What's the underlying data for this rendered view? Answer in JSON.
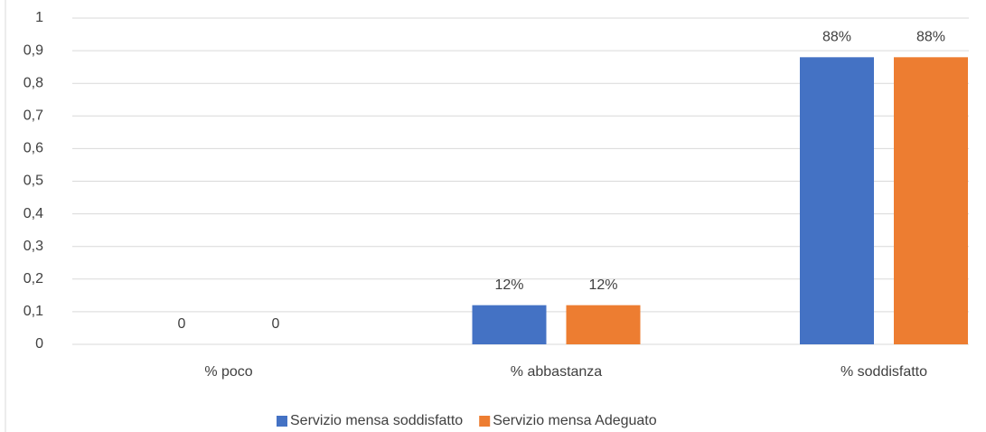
{
  "chart_data": {
    "type": "bar",
    "categories": [
      "% poco",
      "% abbastanza",
      "% soddisfatto"
    ],
    "series": [
      {
        "name": "Servizio mensa soddisfatto",
        "color": "#4472c4",
        "values": [
          0,
          0.12,
          0.88
        ],
        "value_labels": [
          "0",
          "12%",
          "88%"
        ]
      },
      {
        "name": "Servizio mensa Adeguato",
        "color": "#ed7d31",
        "values": [
          0,
          0.12,
          0.88
        ],
        "value_labels": [
          "0",
          "12%",
          "88%"
        ]
      }
    ],
    "ylim": [
      0,
      1
    ],
    "yticks": [
      0,
      {
        "value": 0.1,
        "label": "0,1"
      },
      {
        "value": 0.2,
        "label": "0,2"
      },
      {
        "value": 0.3,
        "label": "0,3"
      },
      {
        "value": 0.4,
        "label": "0,4"
      },
      {
        "value": 0.5,
        "label": "0,5"
      },
      {
        "value": 0.6,
        "label": "0,6"
      },
      {
        "value": 0.7,
        "label": "0,7"
      },
      {
        "value": 0.8,
        "label": "0,8"
      },
      {
        "value": 0.9,
        "label": "0,9"
      },
      1
    ],
    "grid": true,
    "legend": "bottom"
  }
}
